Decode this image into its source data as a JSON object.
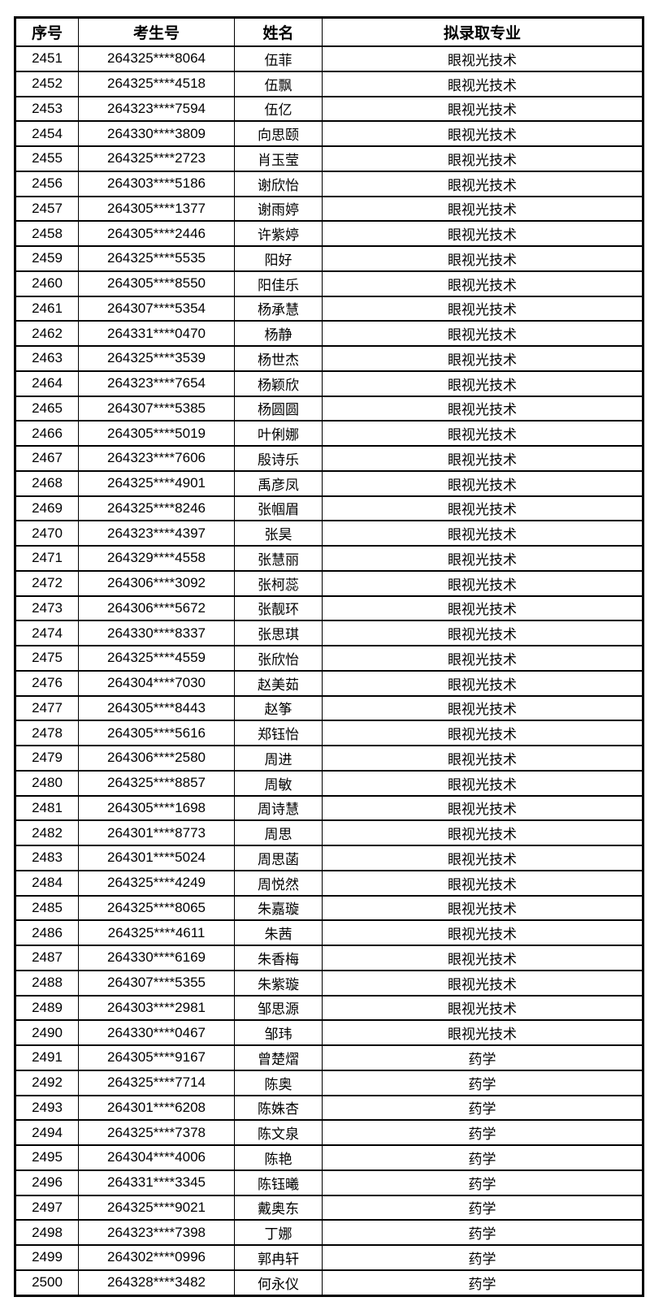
{
  "table": {
    "headers": {
      "seq": "序号",
      "candidate_no": "考生号",
      "name": "姓名",
      "major": "拟录取专业"
    },
    "rows": [
      {
        "seq": "2451",
        "candidate_no": "264325****8064",
        "name": "伍菲",
        "major": "眼视光技术"
      },
      {
        "seq": "2452",
        "candidate_no": "264325****4518",
        "name": "伍飘",
        "major": "眼视光技术"
      },
      {
        "seq": "2453",
        "candidate_no": "264323****7594",
        "name": "伍亿",
        "major": "眼视光技术"
      },
      {
        "seq": "2454",
        "candidate_no": "264330****3809",
        "name": "向思颐",
        "major": "眼视光技术"
      },
      {
        "seq": "2455",
        "candidate_no": "264325****2723",
        "name": "肖玉莹",
        "major": "眼视光技术"
      },
      {
        "seq": "2456",
        "candidate_no": "264303****5186",
        "name": "谢欣怡",
        "major": "眼视光技术"
      },
      {
        "seq": "2457",
        "candidate_no": "264305****1377",
        "name": "谢雨婷",
        "major": "眼视光技术"
      },
      {
        "seq": "2458",
        "candidate_no": "264305****2446",
        "name": "许紫婷",
        "major": "眼视光技术"
      },
      {
        "seq": "2459",
        "candidate_no": "264325****5535",
        "name": "阳好",
        "major": "眼视光技术"
      },
      {
        "seq": "2460",
        "candidate_no": "264305****8550",
        "name": "阳佳乐",
        "major": "眼视光技术"
      },
      {
        "seq": "2461",
        "candidate_no": "264307****5354",
        "name": "杨承慧",
        "major": "眼视光技术"
      },
      {
        "seq": "2462",
        "candidate_no": "264331****0470",
        "name": "杨静",
        "major": "眼视光技术"
      },
      {
        "seq": "2463",
        "candidate_no": "264325****3539",
        "name": "杨世杰",
        "major": "眼视光技术"
      },
      {
        "seq": "2464",
        "candidate_no": "264323****7654",
        "name": "杨颖欣",
        "major": "眼视光技术"
      },
      {
        "seq": "2465",
        "candidate_no": "264307****5385",
        "name": "杨圆圆",
        "major": "眼视光技术"
      },
      {
        "seq": "2466",
        "candidate_no": "264305****5019",
        "name": "叶俐娜",
        "major": "眼视光技术"
      },
      {
        "seq": "2467",
        "candidate_no": "264323****7606",
        "name": "殷诗乐",
        "major": "眼视光技术"
      },
      {
        "seq": "2468",
        "candidate_no": "264325****4901",
        "name": "禹彦凤",
        "major": "眼视光技术"
      },
      {
        "seq": "2469",
        "candidate_no": "264325****8246",
        "name": "张帼眉",
        "major": "眼视光技术"
      },
      {
        "seq": "2470",
        "candidate_no": "264323****4397",
        "name": "张昊",
        "major": "眼视光技术"
      },
      {
        "seq": "2471",
        "candidate_no": "264329****4558",
        "name": "张慧丽",
        "major": "眼视光技术"
      },
      {
        "seq": "2472",
        "candidate_no": "264306****3092",
        "name": "张柯蕊",
        "major": "眼视光技术"
      },
      {
        "seq": "2473",
        "candidate_no": "264306****5672",
        "name": "张靓环",
        "major": "眼视光技术"
      },
      {
        "seq": "2474",
        "candidate_no": "264330****8337",
        "name": "张思琪",
        "major": "眼视光技术"
      },
      {
        "seq": "2475",
        "candidate_no": "264325****4559",
        "name": "张欣怡",
        "major": "眼视光技术"
      },
      {
        "seq": "2476",
        "candidate_no": "264304****7030",
        "name": "赵美茹",
        "major": "眼视光技术"
      },
      {
        "seq": "2477",
        "candidate_no": "264305****8443",
        "name": "赵筝",
        "major": "眼视光技术"
      },
      {
        "seq": "2478",
        "candidate_no": "264305****5616",
        "name": "郑钰怡",
        "major": "眼视光技术"
      },
      {
        "seq": "2479",
        "candidate_no": "264306****2580",
        "name": "周进",
        "major": "眼视光技术"
      },
      {
        "seq": "2480",
        "candidate_no": "264325****8857",
        "name": "周敏",
        "major": "眼视光技术"
      },
      {
        "seq": "2481",
        "candidate_no": "264305****1698",
        "name": "周诗慧",
        "major": "眼视光技术"
      },
      {
        "seq": "2482",
        "candidate_no": "264301****8773",
        "name": "周思",
        "major": "眼视光技术"
      },
      {
        "seq": "2483",
        "candidate_no": "264301****5024",
        "name": "周思菡",
        "major": "眼视光技术"
      },
      {
        "seq": "2484",
        "candidate_no": "264325****4249",
        "name": "周悦然",
        "major": "眼视光技术"
      },
      {
        "seq": "2485",
        "candidate_no": "264325****8065",
        "name": "朱嘉璇",
        "major": "眼视光技术"
      },
      {
        "seq": "2486",
        "candidate_no": "264325****4611",
        "name": "朱茜",
        "major": "眼视光技术"
      },
      {
        "seq": "2487",
        "candidate_no": "264330****6169",
        "name": "朱香梅",
        "major": "眼视光技术"
      },
      {
        "seq": "2488",
        "candidate_no": "264307****5355",
        "name": "朱紫璇",
        "major": "眼视光技术"
      },
      {
        "seq": "2489",
        "candidate_no": "264303****2981",
        "name": "邹思源",
        "major": "眼视光技术"
      },
      {
        "seq": "2490",
        "candidate_no": "264330****0467",
        "name": "邹玮",
        "major": "眼视光技术"
      },
      {
        "seq": "2491",
        "candidate_no": "264305****9167",
        "name": "曾楚熠",
        "major": "药学"
      },
      {
        "seq": "2492",
        "candidate_no": "264325****7714",
        "name": "陈奥",
        "major": "药学"
      },
      {
        "seq": "2493",
        "candidate_no": "264301****6208",
        "name": "陈姝杏",
        "major": "药学"
      },
      {
        "seq": "2494",
        "candidate_no": "264325****7378",
        "name": "陈文泉",
        "major": "药学"
      },
      {
        "seq": "2495",
        "candidate_no": "264304****4006",
        "name": "陈艳",
        "major": "药学"
      },
      {
        "seq": "2496",
        "candidate_no": "264331****3345",
        "name": "陈钰曦",
        "major": "药学"
      },
      {
        "seq": "2497",
        "candidate_no": "264325****9021",
        "name": "戴奥东",
        "major": "药学"
      },
      {
        "seq": "2498",
        "candidate_no": "264323****7398",
        "name": "丁娜",
        "major": "药学"
      },
      {
        "seq": "2499",
        "candidate_no": "264302****0996",
        "name": "郭冉轩",
        "major": "药学"
      },
      {
        "seq": "2500",
        "candidate_no": "264328****3482",
        "name": "何永仪",
        "major": "药学"
      }
    ]
  }
}
